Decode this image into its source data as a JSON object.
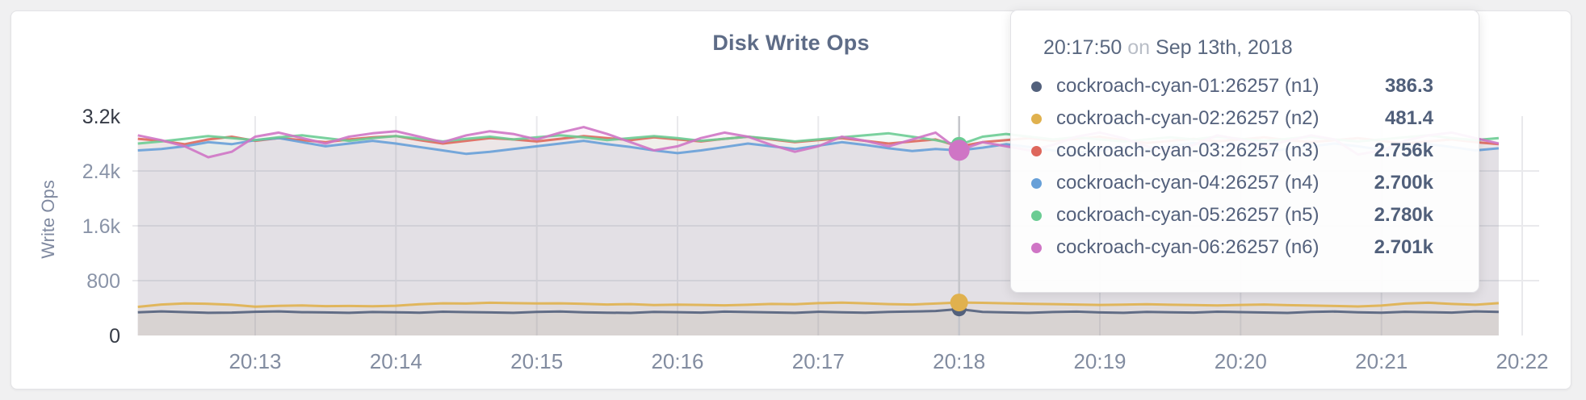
{
  "page": {
    "background": "#f0f0f1"
  },
  "card": {
    "background": "#ffffff",
    "border_color": "#e3e3e6"
  },
  "chart": {
    "title": "Disk Write Ops",
    "y_axis_label": "Write Ops"
  },
  "tooltip": {
    "time": "20:17:50",
    "connector": "on",
    "date": "Sep 13th, 2018"
  },
  "colors": {
    "grid": "#e9e9ec",
    "hover_line": "#c4c5ca",
    "x_tick_text": "#828ca0",
    "y_tick_text": "#8a94a8",
    "y_tick_text_strong": "#363b46",
    "title_text": "#5e6c87",
    "tooltip_text": "#54617c",
    "tooltip_muted_text": "#b9bec7"
  },
  "chart_data": {
    "type": "line",
    "title": "Disk Write Ops",
    "xlabel": "",
    "ylabel": "Write Ops",
    "ylim": [
      0,
      3200
    ],
    "grid": true,
    "x_tick_labels": [
      "20:13",
      "20:14",
      "20:15",
      "20:16",
      "20:17",
      "20:18",
      "20:19",
      "20:20",
      "20:21",
      "20:22"
    ],
    "x_start_time": "20:12:10",
    "x_interval_seconds": 10,
    "y_ticks": [
      {
        "label": "3.2k",
        "value": 3200,
        "strong": true,
        "grid": false
      },
      {
        "label": "2.4k",
        "value": 2400,
        "strong": false,
        "grid": true
      },
      {
        "label": "1.6k",
        "value": 1600,
        "strong": false,
        "grid": true
      },
      {
        "label": "800",
        "value": 800,
        "strong": false,
        "grid": true
      },
      {
        "label": "0",
        "value": 0,
        "strong": true,
        "grid": false
      }
    ],
    "hover_index": 35,
    "hover_time": "20:17:50",
    "hover_date": "Sep 13th, 2018",
    "series": [
      {
        "name": "cockroach-cyan-01:26257 (n1)",
        "color": "#53617c",
        "display_value": "386.3",
        "dot_radius": 9,
        "values": [
          338,
          352,
          341,
          330,
          334,
          346,
          352,
          340,
          336,
          330,
          342,
          338,
          333,
          347,
          341,
          336,
          330,
          344,
          351,
          339,
          333,
          329,
          345,
          340,
          334,
          348,
          342,
          336,
          331,
          346,
          339,
          333,
          345,
          350,
          358,
          386.3,
          344,
          337,
          331,
          342,
          348,
          336,
          330,
          345,
          339,
          334,
          347,
          341,
          335,
          329,
          343,
          350,
          338,
          332,
          346,
          340,
          334,
          352,
          345
        ]
      },
      {
        "name": "cockroach-cyan-02:26257 (n2)",
        "color": "#e0b14e",
        "display_value": "481.4",
        "dot_radius": 11,
        "values": [
          418,
          452,
          468,
          462,
          448,
          420,
          432,
          438,
          428,
          430,
          426,
          434,
          456,
          470,
          466,
          478,
          472,
          468,
          470,
          462,
          452,
          458,
          444,
          450,
          446,
          440,
          448,
          460,
          456,
          472,
          480,
          470,
          458,
          452,
          466,
          481.4,
          476,
          470,
          462,
          458,
          452,
          446,
          450,
          456,
          448,
          444,
          438,
          446,
          452,
          442,
          436,
          430,
          424,
          436,
          466,
          478,
          460,
          448,
          472
        ]
      },
      {
        "name": "cockroach-cyan-03:26257 (n3)",
        "color": "#de675c",
        "display_value": "2.756k",
        "dot_radius": 10,
        "values": [
          2870,
          2840,
          2790,
          2860,
          2900,
          2840,
          2880,
          2850,
          2820,
          2860,
          2890,
          2910,
          2850,
          2800,
          2840,
          2880,
          2860,
          2830,
          2870,
          2910,
          2880,
          2850,
          2890,
          2860,
          2830,
          2870,
          2900,
          2860,
          2820,
          2850,
          2880,
          2840,
          2800,
          2830,
          2860,
          2756,
          2820,
          2850,
          2880,
          2840,
          2870,
          2900,
          2850,
          2810,
          2840,
          2870,
          2830,
          2860,
          2890,
          2850,
          2820,
          2850,
          2880,
          2840,
          2800,
          2830,
          2860,
          2820,
          2790
        ]
      },
      {
        "name": "cockroach-cyan-04:26257 (n4)",
        "color": "#67a0d8",
        "display_value": "2.700k",
        "dot_radius": 9,
        "values": [
          2700,
          2720,
          2760,
          2820,
          2790,
          2850,
          2880,
          2820,
          2760,
          2800,
          2840,
          2800,
          2750,
          2700,
          2650,
          2680,
          2720,
          2760,
          2800,
          2840,
          2790,
          2750,
          2700,
          2660,
          2700,
          2750,
          2800,
          2760,
          2720,
          2770,
          2820,
          2780,
          2730,
          2690,
          2720,
          2700,
          2740,
          2790,
          2750,
          2700,
          2660,
          2700,
          2750,
          2710,
          2760,
          2810,
          2770,
          2720,
          2680,
          2720,
          2760,
          2800,
          2760,
          2710,
          2750,
          2790,
          2750,
          2700,
          2730
        ]
      },
      {
        "name": "cockroach-cyan-05:26257 (n5)",
        "color": "#6bcc93",
        "display_value": "2.780k",
        "dot_radius": 10,
        "values": [
          2800,
          2830,
          2870,
          2910,
          2880,
          2850,
          2890,
          2920,
          2880,
          2840,
          2880,
          2910,
          2870,
          2830,
          2870,
          2900,
          2860,
          2890,
          2920,
          2890,
          2850,
          2880,
          2910,
          2880,
          2840,
          2870,
          2900,
          2870,
          2830,
          2860,
          2890,
          2920,
          2950,
          2900,
          2850,
          2780,
          2900,
          2940,
          2900,
          2860,
          2890,
          2860,
          2830,
          2860,
          2890,
          2860,
          2900,
          2870,
          2840,
          2870,
          2900,
          2860,
          2830,
          2860,
          2890,
          2920,
          2880,
          2850,
          2880
        ]
      },
      {
        "name": "cockroach-cyan-06:26257 (n6)",
        "color": "#cf75c5",
        "display_value": "2.701k",
        "dot_radius": 13,
        "values": [
          2920,
          2850,
          2760,
          2600,
          2680,
          2900,
          2960,
          2880,
          2800,
          2900,
          2950,
          2980,
          2900,
          2820,
          2920,
          2980,
          2940,
          2860,
          2960,
          3040,
          2940,
          2820,
          2700,
          2760,
          2880,
          2960,
          2900,
          2780,
          2680,
          2760,
          2900,
          2840,
          2760,
          2860,
          2960,
          2701,
          2820,
          2760,
          2700,
          2780,
          2900,
          2960,
          2880,
          2760,
          2680,
          2780,
          2920,
          2860,
          2760,
          2840,
          2920,
          2860,
          2640,
          2700,
          2840,
          2920,
          2960,
          2880,
          2800
        ]
      }
    ]
  }
}
